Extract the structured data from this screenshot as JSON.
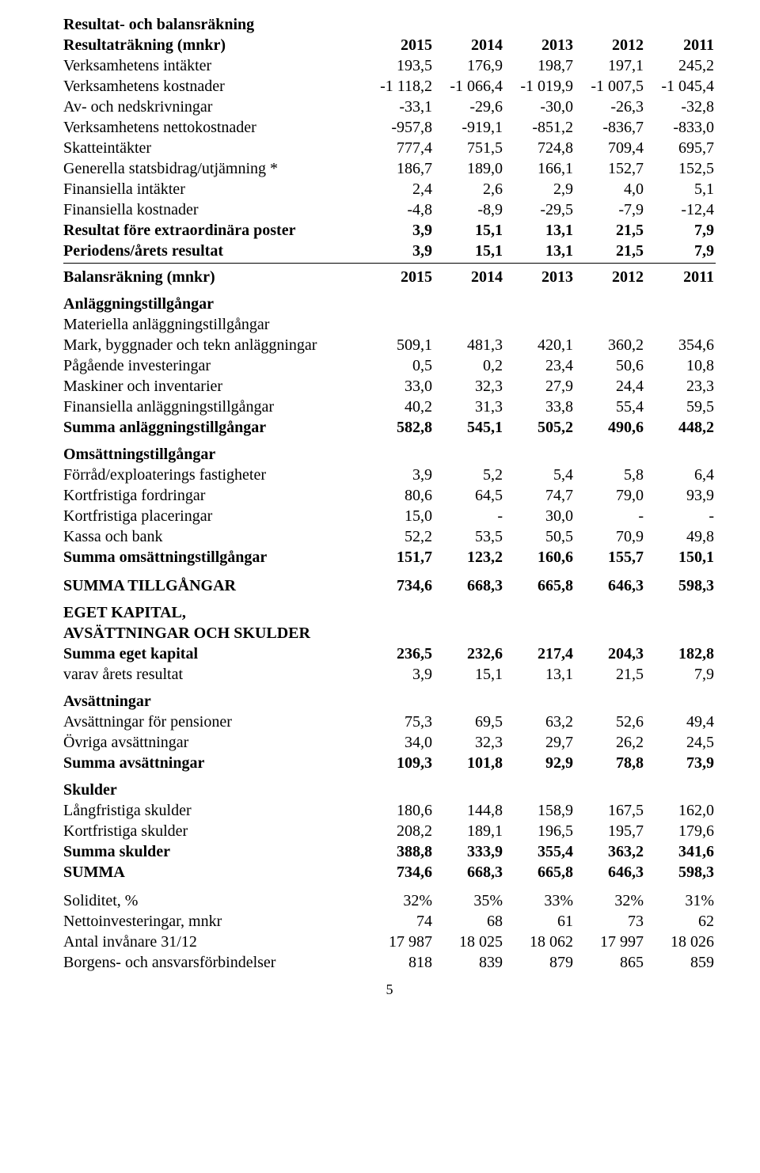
{
  "title": "Resultat- och balansräkning",
  "years": [
    "2015",
    "2014",
    "2013",
    "2012",
    "2011"
  ],
  "resultat": {
    "header": "Resultaträkning (mnkr)",
    "rows": [
      {
        "label": "Verksamhetens intäkter",
        "v": [
          "193,5",
          "176,9",
          "198,7",
          "197,1",
          "245,2"
        ]
      },
      {
        "label": "Verksamhetens kostnader",
        "v": [
          "-1 118,2",
          "-1 066,4",
          "-1 019,9",
          "-1 007,5",
          "-1 045,4"
        ]
      },
      {
        "label": "Av- och nedskrivningar",
        "v": [
          "-33,1",
          "-29,6",
          "-30,0",
          "-26,3",
          "-32,8"
        ]
      },
      {
        "label": "Verksamhetens nettokostnader",
        "v": [
          "-957,8",
          "-919,1",
          "-851,2",
          "-836,7",
          "-833,0"
        ]
      },
      {
        "label": "Skatteintäkter",
        "v": [
          "777,4",
          "751,5",
          "724,8",
          "709,4",
          "695,7"
        ]
      },
      {
        "label": "Generella statsbidrag/utjämning *",
        "v": [
          "186,7",
          "189,0",
          "166,1",
          "152,7",
          "152,5"
        ]
      },
      {
        "label": "Finansiella intäkter",
        "v": [
          "2,4",
          "2,6",
          "2,9",
          "4,0",
          "5,1"
        ]
      },
      {
        "label": "Finansiella kostnader",
        "v": [
          "-4,8",
          "-8,9",
          "-29,5",
          "-7,9",
          "-12,4"
        ]
      },
      {
        "label": "Resultat före extraordinära poster",
        "bold": true,
        "v": [
          "3,9",
          "15,1",
          "13,1",
          "21,5",
          "7,9"
        ]
      },
      {
        "label": "Periodens/årets resultat",
        "bold": true,
        "v": [
          "3,9",
          "15,1",
          "13,1",
          "21,5",
          "7,9"
        ]
      }
    ]
  },
  "balans": {
    "header": "Balansräkning (mnkr)",
    "sections": [
      {
        "heading": "Anläggningstillgångar",
        "sub": "Materiella anläggningstillgångar",
        "rows": [
          {
            "label": "Mark, byggnader och tekn anläggningar",
            "v": [
              "509,1",
              "481,3",
              "420,1",
              "360,2",
              "354,6"
            ]
          },
          {
            "label": "Pågående investeringar",
            "v": [
              "0,5",
              "0,2",
              "23,4",
              "50,6",
              "10,8"
            ]
          },
          {
            "label": "Maskiner och inventarier",
            "v": [
              "33,0",
              "32,3",
              "27,9",
              "24,4",
              "23,3"
            ]
          },
          {
            "label": "Finansiella anläggningstillgångar",
            "v": [
              "40,2",
              "31,3",
              "33,8",
              "55,4",
              "59,5"
            ]
          },
          {
            "label": "Summa anläggningstillgångar",
            "bold": true,
            "v": [
              "582,8",
              "545,1",
              "505,2",
              "490,6",
              "448,2"
            ]
          }
        ]
      },
      {
        "heading": "Omsättningstillgångar",
        "rows": [
          {
            "label": "Förråd/exploaterings fastigheter",
            "v": [
              "3,9",
              "5,2",
              "5,4",
              "5,8",
              "6,4"
            ]
          },
          {
            "label": "Kortfristiga fordringar",
            "v": [
              "80,6",
              "64,5",
              "74,7",
              "79,0",
              "93,9"
            ]
          },
          {
            "label": "Kortfristiga placeringar",
            "v": [
              "15,0",
              "-",
              "30,0",
              "-",
              "-"
            ]
          },
          {
            "label": "Kassa och bank",
            "v": [
              "52,2",
              "53,5",
              "50,5",
              "70,9",
              "49,8"
            ]
          },
          {
            "label": "Summa omsättningstillgångar",
            "bold": true,
            "v": [
              "151,7",
              "123,2",
              "160,6",
              "155,7",
              "150,1"
            ]
          }
        ]
      },
      {
        "rows": [
          {
            "label": "SUMMA TILLGÅNGAR",
            "bold": true,
            "gap": true,
            "v": [
              "734,6",
              "668,3",
              "665,8",
              "646,3",
              "598,3"
            ]
          }
        ]
      },
      {
        "heading": "EGET KAPITAL,",
        "heading2": "AVSÄTTNINGAR OCH SKULDER",
        "rows": [
          {
            "label": "Summa eget kapital",
            "bold": true,
            "v": [
              "236,5",
              "232,6",
              "217,4",
              "204,3",
              "182,8"
            ]
          },
          {
            "label": "varav årets resultat",
            "v": [
              "3,9",
              "15,1",
              "13,1",
              "21,5",
              "7,9"
            ]
          }
        ]
      },
      {
        "heading": "Avsättningar",
        "rows": [
          {
            "label": "Avsättningar för pensioner",
            "v": [
              "75,3",
              "69,5",
              "63,2",
              "52,6",
              "49,4"
            ]
          },
          {
            "label": "Övriga avsättningar",
            "v": [
              "34,0",
              "32,3",
              "29,7",
              "26,2",
              "24,5"
            ]
          },
          {
            "label": "Summa avsättningar",
            "bold": true,
            "v": [
              "109,3",
              "101,8",
              "92,9",
              "78,8",
              "73,9"
            ]
          }
        ]
      },
      {
        "heading": "Skulder",
        "rows": [
          {
            "label": "Långfristiga skulder",
            "v": [
              "180,6",
              "144,8",
              "158,9",
              "167,5",
              "162,0"
            ]
          },
          {
            "label": "Kortfristiga skulder",
            "v": [
              "208,2",
              "189,1",
              "196,5",
              "195,7",
              "179,6"
            ]
          },
          {
            "label": "Summa skulder",
            "bold": true,
            "v": [
              "388,8",
              "333,9",
              "355,4",
              "363,2",
              "341,6"
            ]
          },
          {
            "label": "SUMMA",
            "bold": true,
            "v": [
              "734,6",
              "668,3",
              "665,8",
              "646,3",
              "598,3"
            ]
          }
        ]
      },
      {
        "rows": [
          {
            "label": "Soliditet, %",
            "gap": true,
            "v": [
              "32%",
              "35%",
              "33%",
              "32%",
              "31%"
            ]
          },
          {
            "label": "Nettoinvesteringar, mnkr",
            "v": [
              "74",
              "68",
              "61",
              "73",
              "62"
            ]
          },
          {
            "label": "Antal invånare 31/12",
            "v": [
              "17 987",
              "18 025",
              "18 062",
              "17 997",
              "18 026"
            ]
          },
          {
            "label": "Borgens- och ansvarsförbindelser",
            "v": [
              "818",
              "839",
              "879",
              "865",
              "859"
            ]
          }
        ]
      }
    ]
  },
  "pageNumber": "5"
}
